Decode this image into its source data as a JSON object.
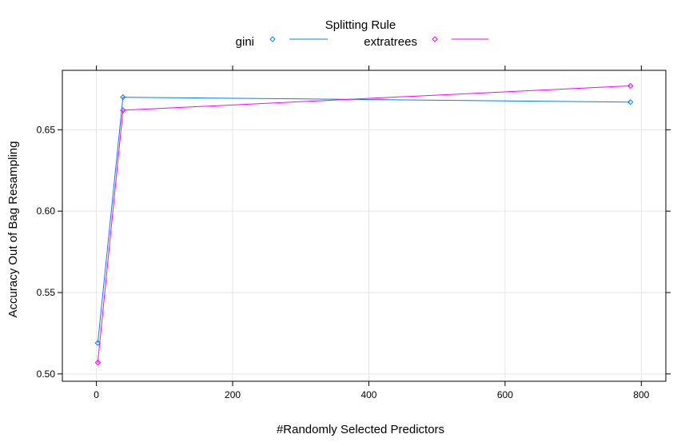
{
  "chart_data": {
    "type": "line",
    "title": "",
    "xlabel": "#Randomly Selected Predictors",
    "ylabel": "Accuracy Out of Bag Resampling",
    "xlim": [
      -50,
      836
    ],
    "ylim": [
      0.4955,
      0.6865
    ],
    "x_ticks": [
      0,
      200,
      400,
      600,
      800
    ],
    "y_ticks": [
      0.5,
      0.55,
      0.6,
      0.65
    ],
    "x_tick_labels": [
      "0",
      "200",
      "400",
      "600",
      "800"
    ],
    "y_tick_labels": [
      "0.50",
      "0.55",
      "0.60",
      "0.65"
    ],
    "grid": true,
    "legend": {
      "title": "Splitting Rule",
      "placement": "top"
    },
    "series": [
      {
        "name": "gini",
        "color": "#0080ff",
        "marker": "diamond",
        "x": [
          2,
          39,
          784
        ],
        "y": [
          0.519,
          0.67,
          0.667
        ]
      },
      {
        "name": "extratrees",
        "color": "#ff00ff",
        "marker": "diamond",
        "x": [
          2,
          39,
          784
        ],
        "y": [
          0.507,
          0.662,
          0.677
        ]
      }
    ]
  }
}
